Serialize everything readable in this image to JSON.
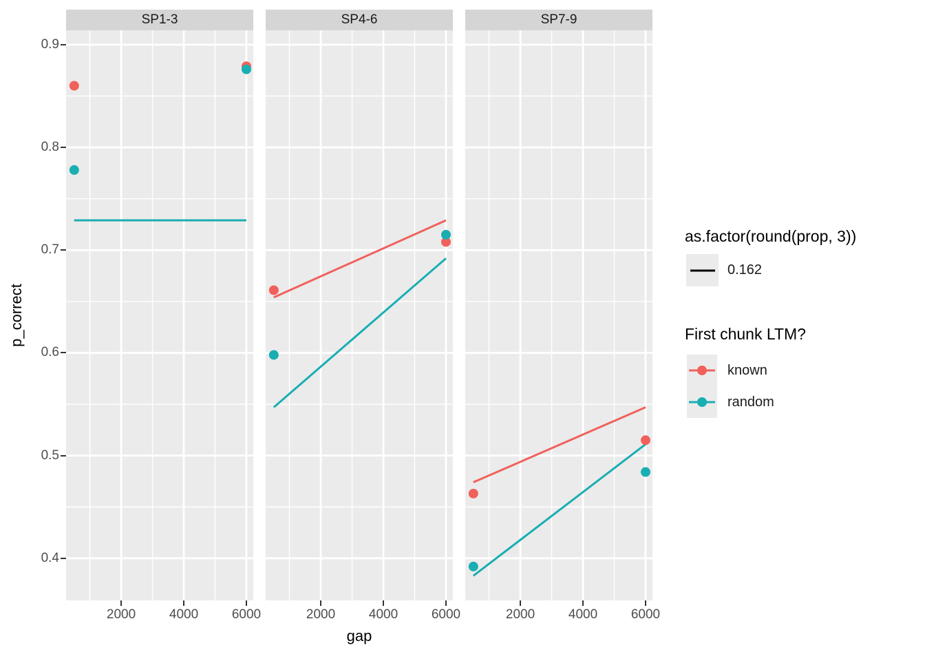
{
  "chart_data": {
    "type": "scatter",
    "title": "",
    "xlabel": "gap",
    "ylabel": "p_correct",
    "facet_variable_values": [
      "SP1-3",
      "SP4-6",
      "SP7-9"
    ],
    "x_ticks": [
      2000,
      4000,
      6000
    ],
    "x_tick_labels": [
      "2000",
      "4000",
      "6000"
    ],
    "x_minor_ticks": [
      1000,
      3000,
      5000
    ],
    "y_ticks": [
      0.4,
      0.5,
      0.6,
      0.7,
      0.8,
      0.9
    ],
    "y_tick_labels": [
      "0.4",
      "0.5",
      "0.6",
      "0.7",
      "0.8",
      "0.9"
    ],
    "y_minor_ticks": [
      0.45,
      0.55,
      0.65,
      0.75,
      0.85
    ],
    "xlim": [
      240,
      6220
    ],
    "ylim": [
      0.359,
      0.914
    ],
    "grid": "on",
    "panel_background": "#ebebeb",
    "strip_background": "#d5d5d5",
    "facets": [
      {
        "label": "SP1-3",
        "series": [
          {
            "name": "known",
            "color": "#f0615c",
            "points": [
              [
                500,
                0.86
              ],
              [
                6000,
                0.879
              ]
            ],
            "line": [
              [
                500,
                0.729
              ],
              [
                6000,
                0.729
              ]
            ]
          },
          {
            "name": "random",
            "color": "#18aeb2",
            "points": [
              [
                500,
                0.778
              ],
              [
                6000,
                0.876
              ]
            ],
            "line": [
              [
                500,
                0.729
              ],
              [
                6000,
                0.729
              ]
            ]
          }
        ]
      },
      {
        "label": "SP4-6",
        "series": [
          {
            "name": "known",
            "color": "#f0615c",
            "points": [
              [
                500,
                0.661
              ],
              [
                6000,
                0.708
              ]
            ],
            "line": [
              [
                500,
                0.654
              ],
              [
                6000,
                0.729
              ]
            ]
          },
          {
            "name": "random",
            "color": "#18aeb2",
            "points": [
              [
                500,
                0.598
              ],
              [
                6000,
                0.715
              ]
            ],
            "line": [
              [
                500,
                0.547
              ],
              [
                6000,
                0.692
              ]
            ]
          }
        ]
      },
      {
        "label": "SP7-9",
        "series": [
          {
            "name": "known",
            "color": "#f0615c",
            "points": [
              [
                500,
                0.463
              ],
              [
                6000,
                0.515
              ]
            ],
            "line": [
              [
                500,
                0.474
              ],
              [
                6000,
                0.547
              ]
            ]
          },
          {
            "name": "random",
            "color": "#18aeb2",
            "points": [
              [
                500,
                0.392
              ],
              [
                6000,
                0.484
              ]
            ],
            "line": [
              [
                500,
                0.383
              ],
              [
                6000,
                0.511
              ]
            ]
          }
        ]
      }
    ],
    "legends": {
      "prop": {
        "title": "as.factor(round(prop, 3))",
        "entries": [
          {
            "label": "0.162",
            "color": "#000000"
          }
        ],
        "position": "right"
      },
      "ltm": {
        "title": "First chunk LTM?",
        "entries": [
          {
            "label": "known",
            "color": "#f0615c"
          },
          {
            "label": "random",
            "color": "#18aeb2"
          }
        ],
        "position": "right"
      }
    }
  }
}
